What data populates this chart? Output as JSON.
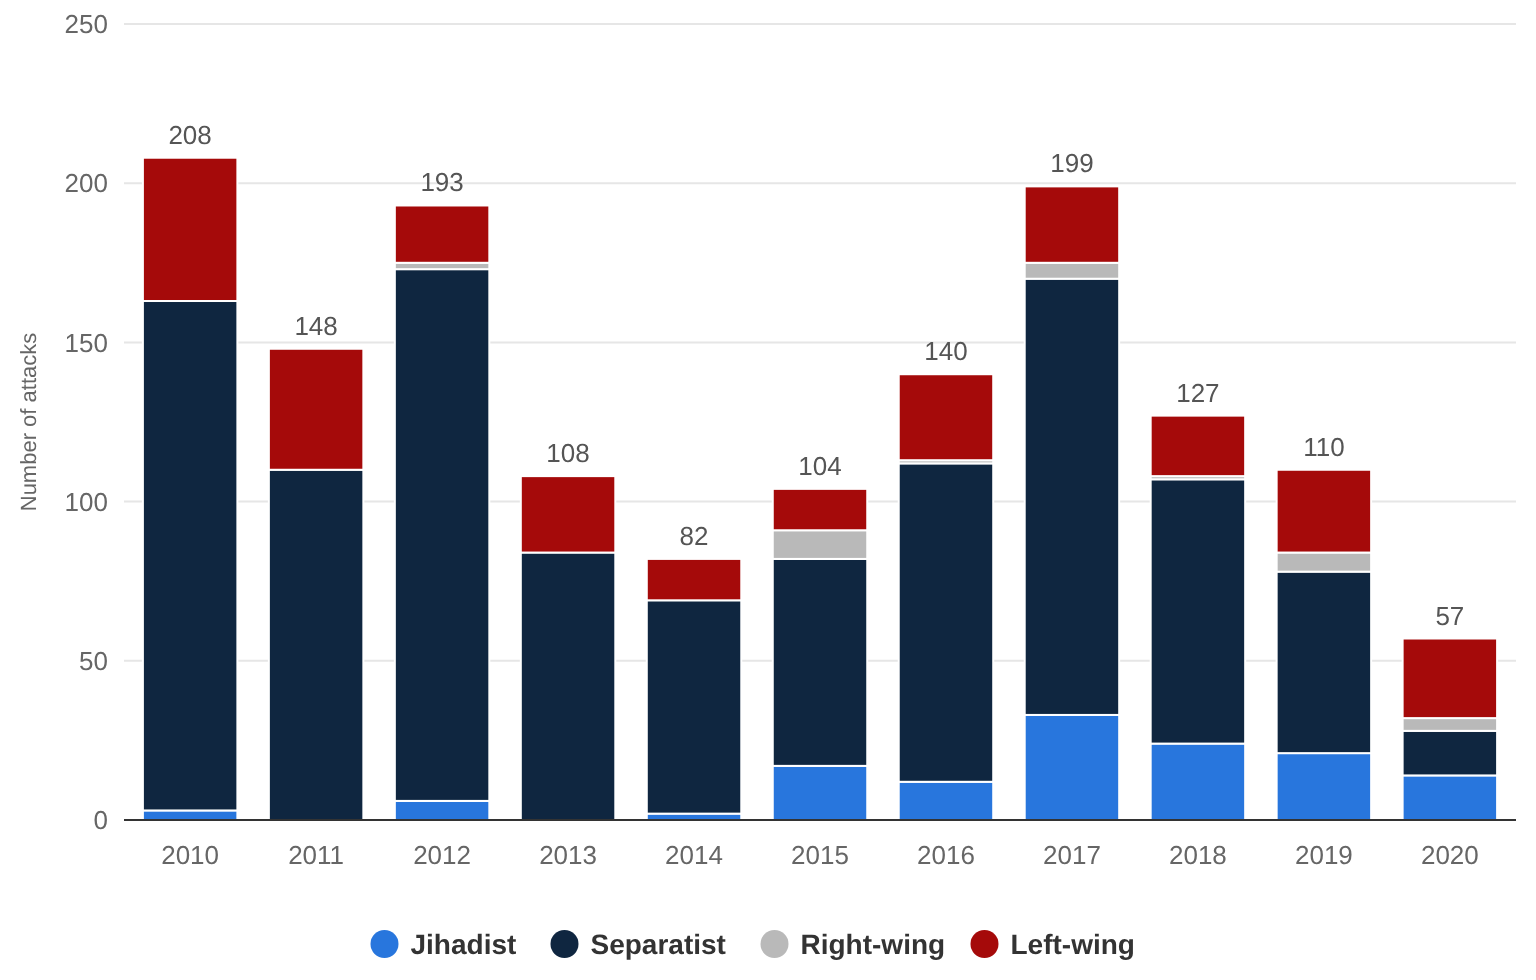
{
  "chart_data": {
    "type": "bar",
    "stacked": true,
    "ylabel": "Number of attacks",
    "categories": [
      "2010",
      "2011",
      "2012",
      "2013",
      "2014",
      "2015",
      "2016",
      "2017",
      "2018",
      "2019",
      "2020"
    ],
    "series": [
      {
        "name": "Jihadist",
        "color": "#2876dd",
        "values": [
          3,
          0,
          6,
          0,
          2,
          17,
          12,
          33,
          24,
          21,
          14
        ]
      },
      {
        "name": "Separatist",
        "color": "#0f2640",
        "values": [
          160,
          110,
          167,
          84,
          67,
          65,
          100,
          137,
          83,
          57,
          14
        ]
      },
      {
        "name": "Right-wing",
        "color": "#b9b9b9",
        "values": [
          0,
          0,
          2,
          0,
          0,
          9,
          1,
          5,
          1,
          6,
          4
        ]
      },
      {
        "name": "Left-wing",
        "color": "#a50a0a",
        "values": [
          45,
          38,
          18,
          24,
          13,
          13,
          27,
          24,
          19,
          26,
          25
        ]
      }
    ],
    "totals": [
      "208",
      "148",
      "193",
      "108",
      "82",
      "104",
      "140",
      "199",
      "127",
      "110",
      "57"
    ],
    "ylim": [
      0,
      250
    ],
    "yticks": [
      0,
      50,
      100,
      150,
      200,
      250
    ],
    "grid": "y",
    "legend": "bottom"
  }
}
